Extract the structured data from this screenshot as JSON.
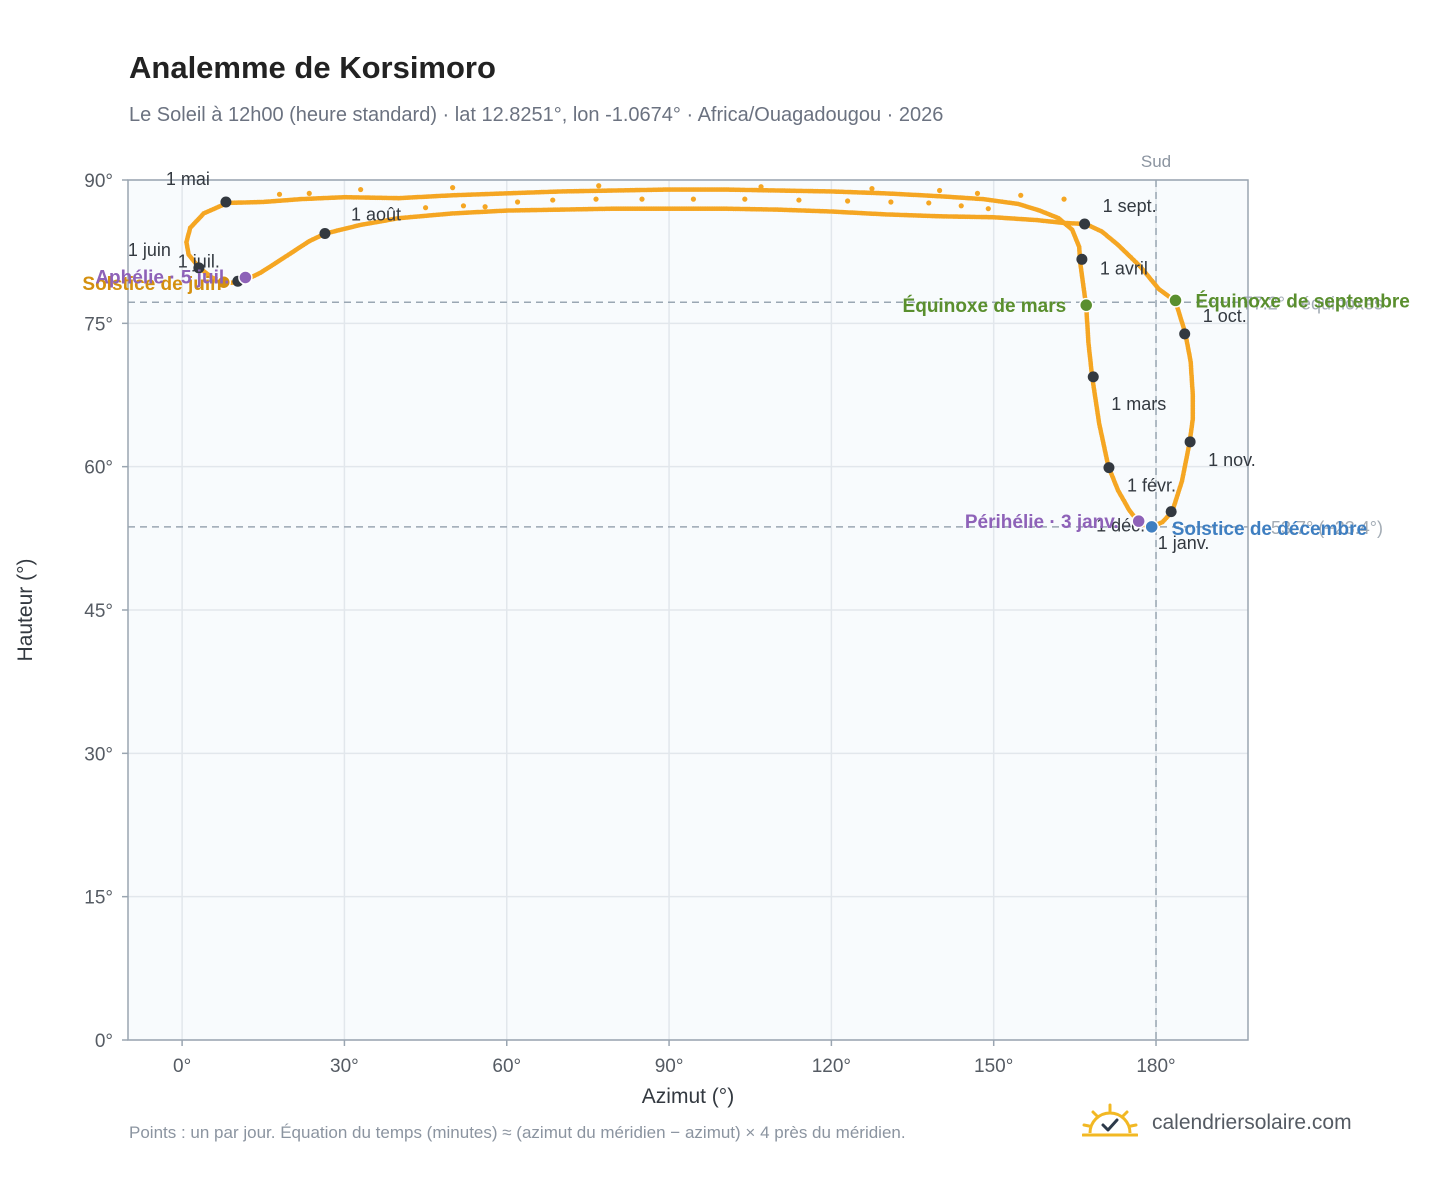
{
  "title": "Analemme de Korsimoro",
  "subtitle": "Le Soleil à 12h00 (heure standard) · lat 12.8251°, lon -1.0674° · Africa/Ouagadougou · 2026",
  "footnote": "Points : un par jour. Équation du temps (minutes) ≈ (azimut du méridien − azimut) × 4 près du méridien.",
  "brand": {
    "name": "calendriersolaire.com",
    "icon": "sun-check-logo-icon"
  },
  "colors": {
    "curve": "#f5a623",
    "month_marker": "#333940",
    "equinox": "#5a8f2e",
    "june_solstice": "#d4900f",
    "december_solstice": "#3f7fc1",
    "aphelion_perihelion": "#8e62b8",
    "plot_background": "#f8fbfd",
    "grid": "#e2e7ec",
    "reference_line": "#9aa7b3",
    "axis_frame": "#9aa5b1"
  },
  "chart_data": {
    "type": "scatter",
    "xlabel": "Azimut (°)",
    "ylabel": "Hauteur (°)",
    "xlim": [
      -10,
      197
    ],
    "ylim": [
      0,
      90
    ],
    "xticks": [
      0,
      30,
      60,
      90,
      120,
      150,
      180
    ],
    "yticks": [
      0,
      15,
      30,
      45,
      60,
      75,
      90
    ],
    "xtick_labels": [
      "0°",
      "30°",
      "60°",
      "90°",
      "120°",
      "150°",
      "180°"
    ],
    "ytick_labels": [
      "0°",
      "15°",
      "30°",
      "45°",
      "60°",
      "75°",
      "90°"
    ],
    "grid": true,
    "south_line": {
      "label": "Sud",
      "azimuth": 180
    },
    "reference_altitudes": [
      {
        "label": "77.2° · équinoxes",
        "altitude": 77.2
      },
      {
        "label": "53.7° (−23.4°)",
        "altitude": 53.7
      }
    ],
    "analemma_path": [
      [
        179.2,
        53.7
      ],
      [
        177,
        54.0
      ],
      [
        175,
        55.5
      ],
      [
        173,
        57.5
      ],
      [
        171.2,
        60.0
      ],
      [
        169.5,
        64.5
      ],
      [
        168.2,
        69.4
      ],
      [
        167.5,
        73.0
      ],
      [
        167.1,
        76.8
      ],
      [
        166.6,
        78.8
      ],
      [
        166.0,
        81.3
      ],
      [
        165.8,
        83.0
      ],
      [
        164.5,
        84.8
      ],
      [
        162.0,
        86.0
      ],
      [
        158.5,
        86.8
      ],
      [
        154.5,
        87.5
      ],
      [
        148.0,
        88.0
      ],
      [
        140.0,
        88.3
      ],
      [
        130.0,
        88.6
      ],
      [
        120.0,
        88.8
      ],
      [
        110.0,
        88.9
      ],
      [
        100.0,
        89.0
      ],
      [
        90.0,
        89.0
      ],
      [
        80.0,
        88.9
      ],
      [
        70.0,
        88.8
      ],
      [
        60.0,
        88.6
      ],
      [
        50.0,
        88.4
      ],
      [
        40.0,
        88.1
      ],
      [
        30.0,
        88.2
      ],
      [
        22.0,
        88.0
      ],
      [
        15.0,
        87.7
      ],
      [
        8.4,
        87.6
      ],
      [
        4.0,
        86.5
      ],
      [
        1.5,
        85.0
      ],
      [
        0.8,
        83.5
      ],
      [
        1.2,
        82.2
      ],
      [
        3.2,
        80.8
      ],
      [
        5.5,
        79.8
      ],
      [
        7.9,
        79.2
      ],
      [
        10.3,
        79.3
      ],
      [
        12.0,
        79.6
      ],
      [
        14.5,
        80.3
      ],
      [
        17.0,
        81.2
      ],
      [
        20.0,
        82.3
      ],
      [
        23.5,
        83.6
      ],
      [
        26.5,
        84.4
      ],
      [
        33.0,
        85.3
      ],
      [
        40.0,
        86.0
      ],
      [
        50.0,
        86.5
      ],
      [
        60.0,
        86.8
      ],
      [
        70.0,
        86.9
      ],
      [
        80.0,
        87.0
      ],
      [
        90.0,
        87.0
      ],
      [
        100.0,
        87.0
      ],
      [
        110.0,
        86.9
      ],
      [
        120.0,
        86.7
      ],
      [
        130.0,
        86.4
      ],
      [
        140.0,
        86.2
      ],
      [
        150.0,
        86.1
      ],
      [
        158.0,
        85.8
      ],
      [
        163.0,
        85.5
      ],
      [
        167.0,
        85.4
      ],
      [
        170.0,
        84.6
      ],
      [
        173.0,
        83.2
      ],
      [
        177.0,
        81.0
      ],
      [
        180.5,
        78.6
      ],
      [
        183.6,
        77.3
      ],
      [
        185.4,
        74.0
      ],
      [
        186.4,
        71.0
      ],
      [
        186.8,
        67.5
      ],
      [
        186.8,
        65.0
      ],
      [
        186.2,
        62.5
      ],
      [
        184.8,
        58.5
      ],
      [
        183.0,
        55.3
      ],
      [
        181.2,
        54.2
      ],
      [
        179.2,
        53.7
      ]
    ],
    "sparse_dots": [
      [
        33,
        89.0
      ],
      [
        50,
        89.2
      ],
      [
        77,
        89.4
      ],
      [
        107,
        89.3
      ],
      [
        127.5,
        89.1
      ],
      [
        140,
        88.9
      ],
      [
        147,
        88.6
      ],
      [
        155,
        88.4
      ],
      [
        163,
        88.0
      ],
      [
        23.5,
        88.6
      ],
      [
        18,
        88.5
      ],
      [
        45,
        87.1
      ],
      [
        52,
        87.3
      ],
      [
        56,
        87.2
      ],
      [
        62,
        87.7
      ],
      [
        68.5,
        87.9
      ],
      [
        76.5,
        88.0
      ],
      [
        85,
        88.0
      ],
      [
        94.5,
        88.0
      ],
      [
        104,
        88.0
      ],
      [
        114,
        87.9
      ],
      [
        123,
        87.8
      ],
      [
        131,
        87.7
      ],
      [
        138,
        87.6
      ],
      [
        144,
        87.3
      ],
      [
        149,
        87.0
      ]
    ],
    "month_markers": [
      {
        "label": "1 janv.",
        "azimuth": 179.2,
        "altitude": 53.7
      },
      {
        "label": "1 févr.",
        "azimuth": 171.3,
        "altitude": 59.9
      },
      {
        "label": "1 mars",
        "azimuth": 168.4,
        "altitude": 69.4
      },
      {
        "label": "1 avril",
        "azimuth": 166.3,
        "altitude": 81.7
      },
      {
        "label": "1 mai",
        "azimuth": 8.1,
        "altitude": 87.7
      },
      {
        "label": "1 juin",
        "azimuth": 3.1,
        "altitude": 80.8
      },
      {
        "label": "1 juil.",
        "azimuth": 10.3,
        "altitude": 79.4
      },
      {
        "label": "1 août",
        "azimuth": 26.4,
        "altitude": 84.4
      },
      {
        "label": "1 sept.",
        "azimuth": 166.8,
        "altitude": 85.4
      },
      {
        "label": "1 oct.",
        "azimuth": 185.3,
        "altitude": 73.9
      },
      {
        "label": "1 nov.",
        "azimuth": 186.3,
        "altitude": 62.6
      },
      {
        "label": "1 déc.",
        "azimuth": 182.8,
        "altitude": 55.3
      }
    ],
    "events": [
      {
        "label": "Équinoxe de mars",
        "azimuth": 167.1,
        "altitude": 76.9,
        "kind": "equinox"
      },
      {
        "label": "Équinoxe de septembre",
        "azimuth": 183.6,
        "altitude": 77.4,
        "kind": "equinox"
      },
      {
        "label": "Solstice de juin",
        "azimuth": 7.7,
        "altitude": 79.3,
        "kind": "june_solstice"
      },
      {
        "label": "Solstice de décembre",
        "azimuth": 179.2,
        "altitude": 53.7,
        "kind": "december_solstice"
      },
      {
        "label": "Aphélie · 5 juil.",
        "azimuth": 11.7,
        "altitude": 79.8,
        "kind": "aphelion_perihelion"
      },
      {
        "label": "Périhélie · 3 janv.",
        "azimuth": 176.8,
        "altitude": 54.3,
        "kind": "aphelion_perihelion"
      }
    ]
  }
}
